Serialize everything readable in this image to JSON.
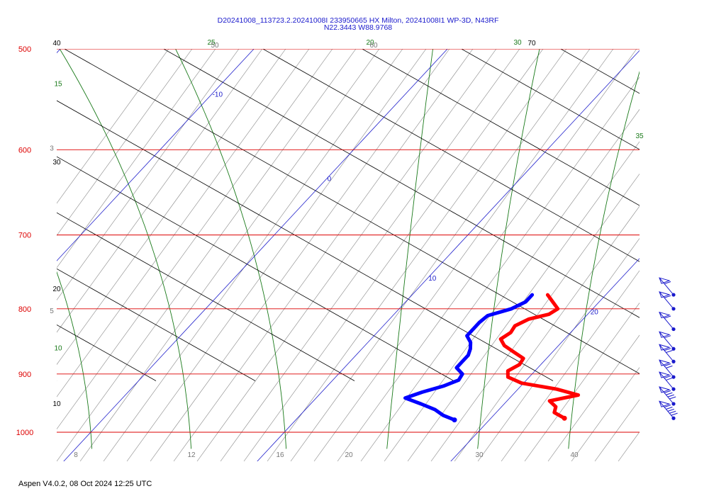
{
  "title_line1": "D20241008_113723.2.20241008I 233950665 HX Milton, 20241008I1 WP-3D, N43RF",
  "title_line2": "N22.3443 W88.9768",
  "footer": "Aspen V4.0.2, 08 Oct 2024  12:25 UTC",
  "colors": {
    "isobar": "#dd0000",
    "isotherm": "#2222cc",
    "dry_adiabat": "#000000",
    "moist_adiabat": "#1a7a1a",
    "mixing_ratio": "#888888",
    "temperature": "#ff0000",
    "dewpoint": "#0000ff",
    "wind": "#1a1acc"
  },
  "chart_data": {
    "type": "line",
    "subtype": "skew-t log-p",
    "ylim": [
      1000,
      500
    ],
    "xlim": [
      -2,
      40
    ],
    "pressure_labels": [
      "500",
      "600",
      "700",
      "800",
      "900",
      "1000"
    ],
    "pressure_levels": [
      500,
      600,
      700,
      800,
      900,
      1000
    ],
    "isotherms": [
      -10,
      0,
      10,
      20,
      30
    ],
    "isotherm_labels": [
      "-10",
      "0",
      "10",
      "20",
      "30"
    ],
    "bottom_labels": [
      "8",
      "12",
      "16",
      "20",
      "30",
      "40"
    ],
    "dry_adiabat_labels": [
      {
        "text": "40",
        "p": 500
      },
      {
        "text": "30",
        "p": 620
      },
      {
        "text": "20",
        "p": 780
      },
      {
        "text": "10",
        "p": 960
      },
      {
        "text": "70",
        "p": 500
      }
    ],
    "moist_adiabat_labels": [
      {
        "text": "15",
        "p": 520
      },
      {
        "text": "10",
        "p": 830
      },
      {
        "text": "25",
        "p": 500
      },
      {
        "text": "30",
        "p": 500
      },
      {
        "text": "35",
        "p": 580
      },
      {
        "text": "20",
        "p": 500
      }
    ],
    "mixing_ratio_labels": [
      {
        "text": "3",
        "p": 598
      },
      {
        "text": "5",
        "p": 802
      },
      {
        "text": "50",
        "p": 500
      },
      {
        "text": "60",
        "p": 500
      }
    ],
    "series": [
      {
        "name": "Temperature",
        "points": [
          [
            780,
            17.0
          ],
          [
            790,
            17.6
          ],
          [
            800,
            18.2
          ],
          [
            808,
            18.0
          ],
          [
            815,
            17.2
          ],
          [
            825,
            16.8
          ],
          [
            835,
            16.9
          ],
          [
            845,
            16.7
          ],
          [
            855,
            17.2
          ],
          [
            865,
            18.0
          ],
          [
            875,
            18.8
          ],
          [
            885,
            18.9
          ],
          [
            895,
            18.6
          ],
          [
            905,
            18.9
          ],
          [
            915,
            19.9
          ],
          [
            925,
            22.0
          ],
          [
            935,
            23.4
          ],
          [
            945,
            22.2
          ],
          [
            955,
            22.8
          ],
          [
            965,
            23.0
          ],
          [
            975,
            23.8
          ]
        ]
      },
      {
        "name": "Dewpoint",
        "points": [
          [
            780,
            16.2
          ],
          [
            790,
            16.2
          ],
          [
            800,
            15.8
          ],
          [
            810,
            14.9
          ],
          [
            820,
            14.8
          ],
          [
            830,
            14.8
          ],
          [
            840,
            14.8
          ],
          [
            850,
            15.3
          ],
          [
            860,
            15.6
          ],
          [
            870,
            15.8
          ],
          [
            880,
            15.8
          ],
          [
            890,
            15.8
          ],
          [
            900,
            16.4
          ],
          [
            910,
            16.5
          ],
          [
            920,
            16.0
          ],
          [
            930,
            15.2
          ],
          [
            940,
            14.6
          ],
          [
            950,
            15.7
          ],
          [
            960,
            16.7
          ],
          [
            970,
            17.4
          ],
          [
            978,
            18.2
          ]
        ]
      }
    ],
    "wind_barbs": [
      {
        "p": 780,
        "speed_kt": 15
      },
      {
        "p": 800,
        "speed_kt": 15
      },
      {
        "p": 830,
        "speed_kt": 15
      },
      {
        "p": 860,
        "speed_kt": 15
      },
      {
        "p": 880,
        "speed_kt": 20
      },
      {
        "p": 905,
        "speed_kt": 20
      },
      {
        "p": 925,
        "speed_kt": 20
      },
      {
        "p": 950,
        "speed_kt": 30
      },
      {
        "p": 975,
        "speed_kt": 35
      }
    ]
  }
}
